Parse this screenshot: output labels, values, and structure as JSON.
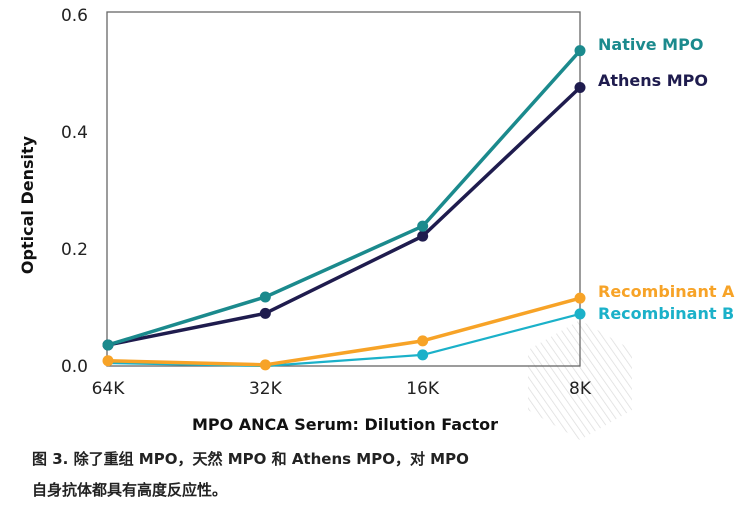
{
  "chart_data": {
    "type": "line",
    "xlabel": "MPO ANCA Serum: Dilution Factor",
    "ylabel": "Optical Density",
    "categories": [
      "64K",
      "32K",
      "16K",
      "8K"
    ],
    "ylim": [
      0,
      0.6
    ],
    "yticks": [
      "0.0",
      "0.2",
      "0.4",
      "0.6"
    ],
    "ytick_values": [
      0,
      0.2,
      0.4,
      0.6
    ],
    "grid": false,
    "legend_placement": "right, labels at line ends",
    "series": [
      {
        "name": "Native MPO",
        "color": "#1b8a8d",
        "values": [
          0.036,
          0.118,
          0.239,
          0.539
        ]
      },
      {
        "name": "Athens MPO",
        "color": "#1f1c4e",
        "values": [
          0.036,
          0.09,
          0.222,
          0.476
        ]
      },
      {
        "name": "Recombinant A",
        "color": "#f7a327",
        "values": [
          0.009,
          0.002,
          0.043,
          0.116
        ]
      },
      {
        "name": "Recombinant B",
        "color": "#1bb1c9",
        "values": [
          0.005,
          0.0,
          0.019,
          0.089
        ]
      }
    ]
  },
  "caption": {
    "line1": "图 3. 除了重组 MPO，天然 MPO 和 Athens MPO，对 MPO",
    "line2": "自身抗体都具有高度反应性。"
  }
}
